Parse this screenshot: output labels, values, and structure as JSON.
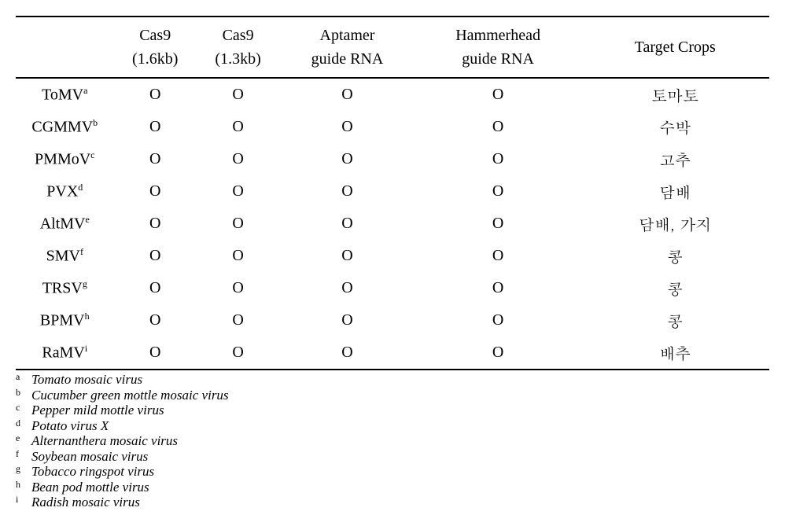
{
  "table": {
    "columns": [
      {
        "line1": "",
        "line2": ""
      },
      {
        "line1": "Cas9",
        "line2": "(1.6kb)"
      },
      {
        "line1": "Cas9",
        "line2": "(1.3kb)"
      },
      {
        "line1": "Aptamer",
        "line2": "guide RNA"
      },
      {
        "line1": "Hammerhead",
        "line2": "guide RNA"
      },
      {
        "line1": "Target Crops",
        "line2": ""
      }
    ],
    "rows": [
      {
        "label": "ToMV",
        "sup": "a",
        "c1": "O",
        "c2": "O",
        "c3": "O",
        "c4": "O",
        "crop": "토마토"
      },
      {
        "label": "CGMMV",
        "sup": "b",
        "c1": "O",
        "c2": "O",
        "c3": "O",
        "c4": "O",
        "crop": "수박"
      },
      {
        "label": "PMMoV",
        "sup": "c",
        "c1": "O",
        "c2": "O",
        "c3": "O",
        "c4": "O",
        "crop": "고추"
      },
      {
        "label": "PVX",
        "sup": "d",
        "c1": "O",
        "c2": "O",
        "c3": "O",
        "c4": "O",
        "crop": "담배"
      },
      {
        "label": "AltMV",
        "sup": "e",
        "c1": "O",
        "c2": "O",
        "c3": "O",
        "c4": "O",
        "crop": "담배, 가지"
      },
      {
        "label": "SMV",
        "sup": "f",
        "c1": "O",
        "c2": "O",
        "c3": "O",
        "c4": "O",
        "crop": "콩"
      },
      {
        "label": "TRSV",
        "sup": "g",
        "c1": "O",
        "c2": "O",
        "c3": "O",
        "c4": "O",
        "crop": "콩"
      },
      {
        "label": "BPMV",
        "sup": "h",
        "c1": "O",
        "c2": "O",
        "c3": "O",
        "c4": "O",
        "crop": "콩"
      },
      {
        "label": "RaMV",
        "sup": "i",
        "c1": "O",
        "c2": "O",
        "c3": "O",
        "c4": "O",
        "crop": "배추"
      }
    ]
  },
  "footnotes": [
    {
      "letter": "a",
      "text": "Tomato mosaic virus"
    },
    {
      "letter": "b",
      "text": "Cucumber green mottle mosaic virus"
    },
    {
      "letter": "c",
      "text": "Pepper mild mottle virus"
    },
    {
      "letter": "d",
      "text": "Potato virus X"
    },
    {
      "letter": "e",
      "text": "Alternanthera mosaic virus"
    },
    {
      "letter": "f",
      "text": "Soybean mosaic virus"
    },
    {
      "letter": "g",
      "text": "Tobacco ringspot virus"
    },
    {
      "letter": "h",
      "text": "Bean pod mottle virus"
    },
    {
      "letter": "i",
      "text": "Radish mosaic virus"
    }
  ],
  "style": {
    "background_color": "#ffffff",
    "border_color": "#000000",
    "font_family_main": "Times New Roman",
    "font_family_cjk": "Batang",
    "header_fontsize": 20,
    "cell_fontsize": 20,
    "footnote_fontsize": 17,
    "sup_fontsize": 12,
    "col_widths_pct": [
      13,
      11,
      11,
      18,
      22,
      25
    ]
  }
}
